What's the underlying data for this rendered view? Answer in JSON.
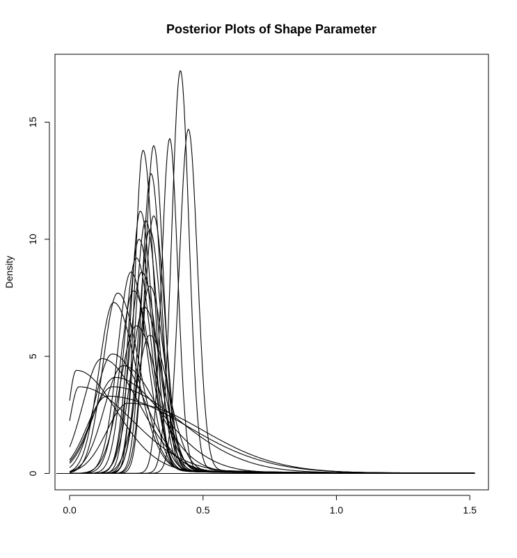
{
  "chart_data": {
    "type": "line",
    "title": "Posterior Plots of Shape Parameter",
    "xlabel": "",
    "ylabel": "Density",
    "xlim": [
      -0.055,
      1.57
    ],
    "ylim": [
      -0.7,
      17.9
    ],
    "x_ticks": [
      0.0,
      0.5,
      1.0,
      1.5
    ],
    "x_tick_labels": [
      "0.0",
      "0.5",
      "1.0",
      "1.5"
    ],
    "y_ticks": [
      0,
      5,
      10,
      15
    ],
    "y_tick_labels": [
      "0",
      "5",
      "10",
      "15"
    ],
    "baseline_y": 0,
    "grid": false,
    "legend": "none",
    "line_color": "#000000",
    "note": "Posterior density curves; each entry gives mode (x), peak density, left spread and right spread (in x units).",
    "curves": [
      {
        "mode": 0.415,
        "peak": 17.2,
        "sl": 0.032,
        "sr": 0.032
      },
      {
        "mode": 0.445,
        "peak": 14.7,
        "sl": 0.034,
        "sr": 0.034
      },
      {
        "mode": 0.375,
        "peak": 14.3,
        "sl": 0.03,
        "sr": 0.03
      },
      {
        "mode": 0.315,
        "peak": 14.0,
        "sl": 0.032,
        "sr": 0.036
      },
      {
        "mode": 0.275,
        "peak": 13.8,
        "sl": 0.03,
        "sr": 0.04
      },
      {
        "mode": 0.305,
        "peak": 12.8,
        "sl": 0.034,
        "sr": 0.038
      },
      {
        "mode": 0.265,
        "peak": 11.2,
        "sl": 0.036,
        "sr": 0.045
      },
      {
        "mode": 0.315,
        "peak": 11.0,
        "sl": 0.036,
        "sr": 0.042
      },
      {
        "mode": 0.285,
        "peak": 10.8,
        "sl": 0.038,
        "sr": 0.045
      },
      {
        "mode": 0.3,
        "peak": 10.4,
        "sl": 0.04,
        "sr": 0.045
      },
      {
        "mode": 0.26,
        "peak": 10.0,
        "sl": 0.04,
        "sr": 0.05
      },
      {
        "mode": 0.25,
        "peak": 9.2,
        "sl": 0.045,
        "sr": 0.055
      },
      {
        "mode": 0.23,
        "peak": 8.6,
        "sl": 0.05,
        "sr": 0.06
      },
      {
        "mode": 0.27,
        "peak": 8.6,
        "sl": 0.045,
        "sr": 0.06
      },
      {
        "mode": 0.3,
        "peak": 8.0,
        "sl": 0.042,
        "sr": 0.055
      },
      {
        "mode": 0.24,
        "peak": 7.8,
        "sl": 0.05,
        "sr": 0.065
      },
      {
        "mode": 0.18,
        "peak": 7.7,
        "sl": 0.055,
        "sr": 0.08
      },
      {
        "mode": 0.165,
        "peak": 7.3,
        "sl": 0.055,
        "sr": 0.085
      },
      {
        "mode": 0.28,
        "peak": 7.1,
        "sl": 0.05,
        "sr": 0.065
      },
      {
        "mode": 0.25,
        "peak": 6.3,
        "sl": 0.06,
        "sr": 0.08
      },
      {
        "mode": 0.3,
        "peak": 5.9,
        "sl": 0.05,
        "sr": 0.07
      },
      {
        "mode": 0.16,
        "peak": 5.1,
        "sl": 0.065,
        "sr": 0.12
      },
      {
        "mode": 0.12,
        "peak": 4.9,
        "sl": 0.07,
        "sr": 0.14
      },
      {
        "mode": 0.2,
        "peak": 4.6,
        "sl": 0.07,
        "sr": 0.13
      },
      {
        "mode": 0.025,
        "peak": 4.4,
        "sl": 0.03,
        "sr": 0.15
      },
      {
        "mode": 0.17,
        "peak": 4.1,
        "sl": 0.08,
        "sr": 0.18
      },
      {
        "mode": 0.035,
        "peak": 3.7,
        "sl": 0.035,
        "sr": 0.2
      },
      {
        "mode": 0.16,
        "peak": 3.7,
        "sl": 0.08,
        "sr": 0.25
      },
      {
        "mode": 0.14,
        "peak": 3.3,
        "sl": 0.075,
        "sr": 0.3
      },
      {
        "mode": 0.22,
        "peak": 3.0,
        "sl": 0.08,
        "sr": 0.28
      }
    ]
  }
}
